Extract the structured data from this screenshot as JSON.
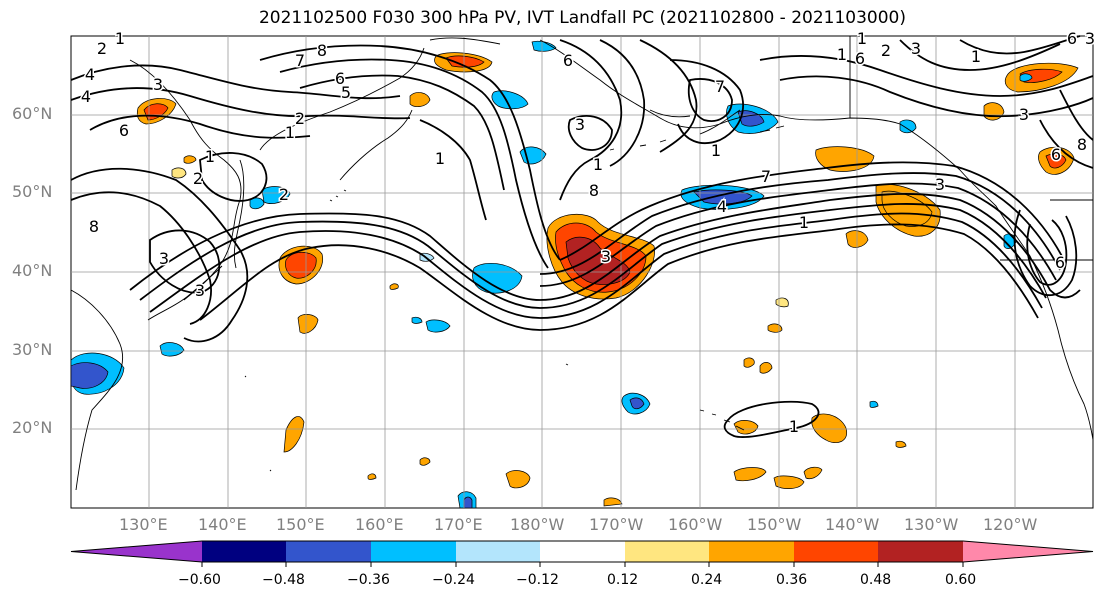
{
  "title": "2021102500 F030 300 hPa PV, IVT Landfall PC (2021102800 - 2021103000)",
  "lat_labels": [
    "60°N",
    "50°N",
    "40°N",
    "30°N",
    "20°N"
  ],
  "lon_labels": [
    "130°E",
    "140°E",
    "150°E",
    "160°E",
    "170°E",
    "180°W",
    "170°W",
    "160°W",
    "150°W",
    "140°W",
    "130°W",
    "120°W"
  ],
  "colorbar": {
    "tick_labels": [
      "−0.60",
      "−0.48",
      "−0.36",
      "−0.24",
      "−0.12",
      "0.12",
      "0.24",
      "0.36",
      "0.48",
      "0.60"
    ],
    "colors": [
      "#9933cc",
      "#000080",
      "#3355cc",
      "#00bfff",
      "#b3e5fc",
      "#ffffff",
      "#ffe680",
      "#ffa500",
      "#ff4500",
      "#b22222",
      "#ff88aa"
    ]
  },
  "contour_labels": [
    "2",
    "1",
    "8",
    "7",
    "6",
    "5",
    "4",
    "3",
    "2",
    "1",
    "6",
    "3",
    "8",
    "1",
    "2",
    "1",
    "3",
    "3",
    "8",
    "1",
    "7",
    "6",
    "1",
    "7",
    "4",
    "1",
    "3",
    "1",
    "2",
    "6",
    "2",
    "3",
    "3",
    "1",
    "6",
    "3",
    "8",
    "1",
    "6",
    "6",
    "3",
    "4",
    "1"
  ],
  "map": {
    "projection": "PlateCarree",
    "lon_range": [
      120,
      250
    ],
    "lat_range": [
      10,
      70
    ],
    "field": "300 hPa PV contours with IVT landfall PC shading"
  }
}
